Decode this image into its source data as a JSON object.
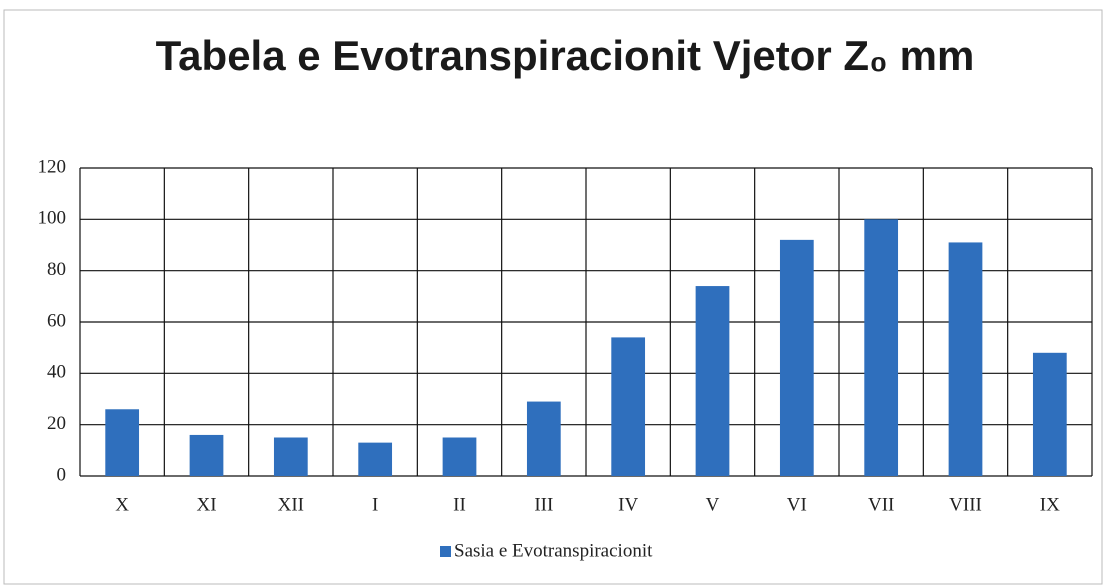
{
  "chart_data": {
    "type": "bar",
    "title": "Tabela e Evotranspiracionit Vjetor Z₀ mm",
    "categories": [
      "X",
      "XI",
      "XII",
      "I",
      "II",
      "III",
      "IV",
      "V",
      "VI",
      "VII",
      "VIII",
      "IX"
    ],
    "series": [
      {
        "name": "Sasia e Evotranspiracionit",
        "color": "#2f6fbd",
        "values": [
          26,
          16,
          15,
          13,
          15,
          29,
          54,
          74,
          92,
          100,
          91,
          48
        ]
      }
    ],
    "ylim": [
      0,
      120
    ],
    "yticks": [
      0,
      20,
      40,
      60,
      80,
      100,
      120
    ],
    "grid": true,
    "legend": "bottom"
  }
}
